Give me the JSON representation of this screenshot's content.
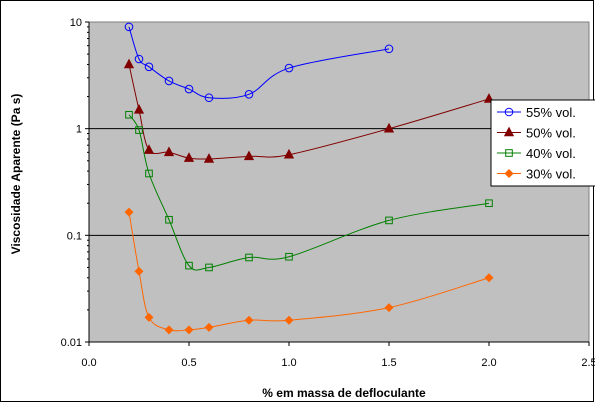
{
  "chart_data": {
    "type": "scatter",
    "title": "",
    "xlabel": "% em massa de defloculante",
    "ylabel": "Viscosidade Aparente (Pa s)",
    "xlim": [
      0.0,
      2.5
    ],
    "ylim": [
      0.01,
      10
    ],
    "y_scale": "log",
    "x_ticks": [
      "0.0",
      "0.5",
      "1.0",
      "1.5",
      "2.0",
      "2.5"
    ],
    "y_ticks": [
      "10",
      "1",
      "0.1",
      "0.01"
    ],
    "grid": "horizontal major lines",
    "plot_background": "#c0c0c0",
    "legend_position": "right",
    "series": [
      {
        "name": "55% vol.",
        "color": "#0000ff",
        "marker": "open-circle",
        "x": [
          0.2,
          0.25,
          0.3,
          0.4,
          0.5,
          0.6,
          0.8,
          1.0,
          1.5
        ],
        "y": [
          9.0,
          4.5,
          3.8,
          2.8,
          2.35,
          1.95,
          2.1,
          3.7,
          5.6
        ]
      },
      {
        "name": "50% vol.",
        "color": "#800000",
        "marker": "filled-triangle",
        "x": [
          0.2,
          0.25,
          0.3,
          0.4,
          0.5,
          0.6,
          0.8,
          1.0,
          1.5,
          2.0
        ],
        "y": [
          4.0,
          1.5,
          0.63,
          0.6,
          0.53,
          0.52,
          0.55,
          0.57,
          1.0,
          1.9
        ]
      },
      {
        "name": "40% vol.",
        "color": "#008000",
        "marker": "open-square",
        "x": [
          0.2,
          0.25,
          0.3,
          0.4,
          0.5,
          0.6,
          0.8,
          1.0,
          1.5,
          2.0
        ],
        "y": [
          1.35,
          0.97,
          0.38,
          0.14,
          0.052,
          0.05,
          0.062,
          0.063,
          0.138,
          0.2
        ]
      },
      {
        "name": "30% vol.",
        "color": "#ff6600",
        "marker": "filled-diamond",
        "x": [
          0.2,
          0.25,
          0.3,
          0.4,
          0.5,
          0.6,
          0.8,
          1.0,
          1.5,
          2.0
        ],
        "y": [
          0.165,
          0.046,
          0.017,
          0.013,
          0.013,
          0.0137,
          0.016,
          0.016,
          0.021,
          0.04
        ]
      }
    ]
  }
}
